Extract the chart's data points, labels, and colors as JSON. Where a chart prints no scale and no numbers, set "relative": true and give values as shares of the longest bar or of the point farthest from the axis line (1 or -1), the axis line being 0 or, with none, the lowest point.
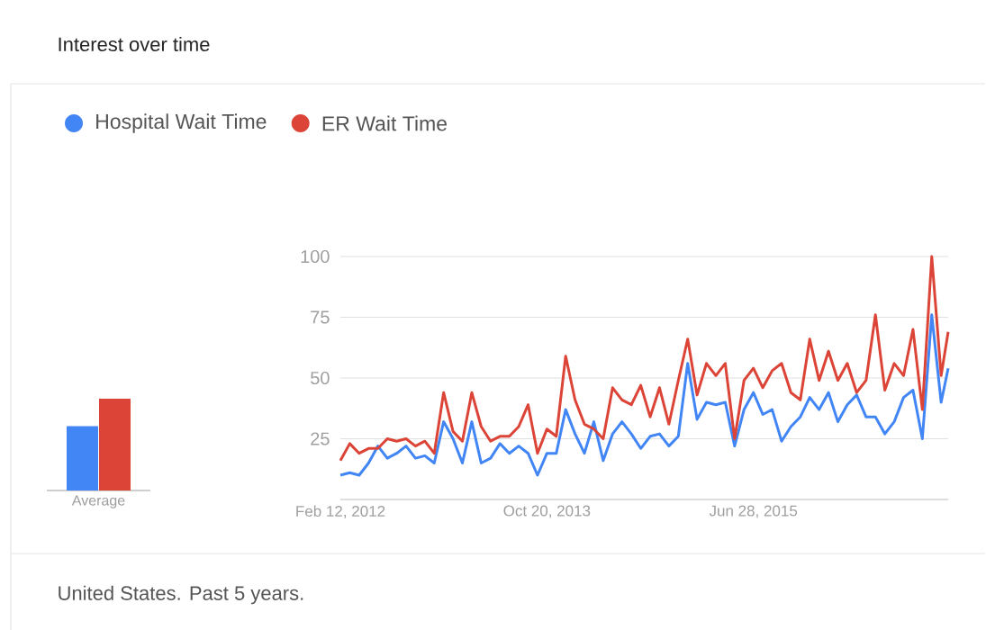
{
  "chart_data": [
    {
      "type": "bar",
      "relative": true,
      "categories": [
        "Average"
      ],
      "series": [
        {
          "color": "#4285f4",
          "values": [
            0.7
          ]
        },
        {
          "color": "#db4437",
          "values": [
            1
          ]
        }
      ]
    },
    {
      "type": "line",
      "title": "Interest over time",
      "legend": "top left",
      "grid": "y",
      "annotations": [
        "United States. Past 5 years."
      ],
      "x": [
        "2012-02-12",
        "2012-03-11",
        "2012-04-08",
        "2012-05-06",
        "2012-06-03",
        "2012-07-01",
        "2012-07-29",
        "2012-08-26",
        "2012-09-23",
        "2012-10-21",
        "2012-11-18",
        "2012-12-16",
        "2013-01-13",
        "2013-02-10",
        "2013-03-10",
        "2013-04-07",
        "2013-05-05",
        "2013-06-02",
        "2013-06-30",
        "2013-07-28",
        "2013-08-25",
        "2013-09-22",
        "2013-10-20",
        "2013-11-17",
        "2013-12-15",
        "2014-01-12",
        "2014-02-09",
        "2014-03-09",
        "2014-04-06",
        "2014-05-04",
        "2014-06-01",
        "2014-06-29",
        "2014-07-27",
        "2014-08-24",
        "2014-09-21",
        "2014-10-19",
        "2014-11-16",
        "2014-12-14",
        "2015-01-11",
        "2015-02-08",
        "2015-03-08",
        "2015-04-05",
        "2015-05-03",
        "2015-05-31",
        "2015-06-28",
        "2015-07-26",
        "2015-08-23",
        "2015-09-20",
        "2015-10-18",
        "2015-11-15",
        "2015-12-13",
        "2016-01-10",
        "2016-02-07",
        "2016-03-06",
        "2016-04-03",
        "2016-05-01",
        "2016-05-29",
        "2016-06-26",
        "2016-07-24",
        "2016-08-21",
        "2016-09-18",
        "2016-10-16",
        "2016-11-13",
        "2016-12-11",
        "2017-01-08",
        "2017-01-29"
      ],
      "xlim": [
        "2012-02-12",
        "2017-01-29"
      ],
      "xticks": [
        {
          "value": "2012-02-12",
          "label": "Feb 12, 2012"
        },
        {
          "value": "2013-10-20",
          "label": "Oct 20, 2013"
        },
        {
          "value": "2015-06-28",
          "label": "Jun 28, 2015"
        }
      ],
      "ylim": [
        0,
        100
      ],
      "yticks": [
        25,
        50,
        75,
        100
      ],
      "series": [
        {
          "name": "Hospital Wait Time",
          "color": "#4285f4",
          "values": [
            10,
            11,
            10,
            15,
            22,
            17,
            19,
            22,
            17,
            18,
            15,
            32,
            25,
            15,
            32,
            15,
            17,
            23,
            19,
            22,
            19,
            10,
            19,
            19,
            37,
            27,
            19,
            32,
            16,
            27,
            32,
            27,
            21,
            26,
            27,
            22,
            26,
            56,
            33,
            40,
            39,
            40,
            22,
            37,
            44,
            35,
            37,
            24,
            30,
            34,
            42,
            37,
            44,
            32,
            39,
            43,
            34,
            34,
            27,
            32,
            42,
            45,
            25,
            76,
            40,
            54
          ]
        },
        {
          "name": "ER Wait Time",
          "color": "#db4437",
          "values": [
            16,
            23,
            19,
            21,
            21,
            25,
            24,
            25,
            22,
            24,
            19,
            44,
            28,
            24,
            44,
            30,
            24,
            26,
            26,
            30,
            39,
            19,
            29,
            26,
            59,
            41,
            31,
            29,
            25,
            46,
            41,
            39,
            47,
            34,
            46,
            31,
            49,
            66,
            43,
            56,
            51,
            56,
            25,
            49,
            54,
            46,
            53,
            56,
            44,
            41,
            66,
            49,
            61,
            49,
            56,
            44,
            49,
            76,
            45,
            56,
            51,
            70,
            37,
            100,
            51,
            69
          ]
        }
      ]
    }
  ]
}
